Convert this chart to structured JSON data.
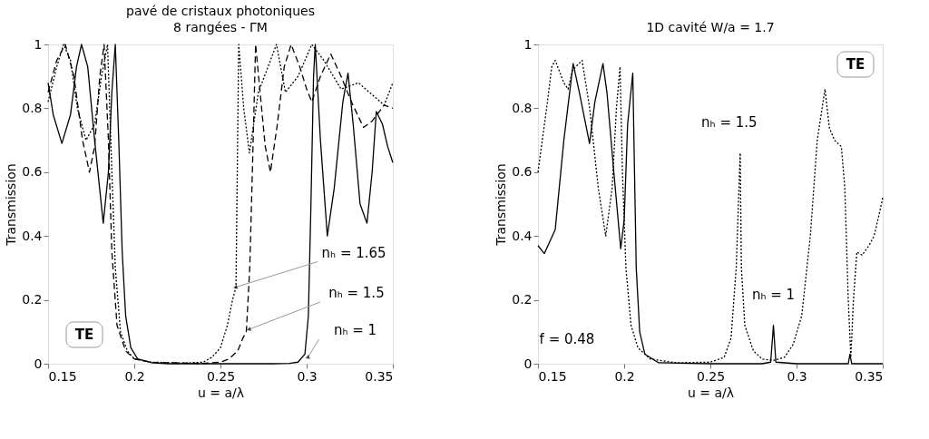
{
  "chart_data": [
    {
      "type": "line",
      "title": "pavé de cristaux photoniques",
      "subtitle": "8 rangées - ΓM",
      "xlabel": "u = a/λ",
      "ylabel": "Transmission",
      "xlim": [
        0.15,
        0.35
      ],
      "ylim": [
        0,
        1
      ],
      "xticks": [
        0.15,
        0.2,
        0.25,
        0.3,
        0.35
      ],
      "yticks": [
        0,
        0.2,
        0.4,
        0.6,
        0.8,
        1
      ],
      "grid": false,
      "series": [
        {
          "color": "#000000",
          "line_style": "solid",
          "x": [
            0.15,
            0.153,
            0.158,
            0.163,
            0.1665,
            0.1694,
            0.173,
            0.177,
            0.182,
            0.185,
            0.187,
            0.189,
            0.191,
            0.193,
            0.195,
            0.198,
            0.202,
            0.21,
            0.22,
            0.25,
            0.28,
            0.29,
            0.295,
            0.299,
            0.301,
            0.3025,
            0.304,
            0.305,
            0.308,
            0.312,
            0.316,
            0.321,
            0.324,
            0.327,
            0.331,
            0.335,
            0.338,
            0.3404,
            0.344,
            0.347,
            0.35
          ],
          "values": [
            0.88,
            0.78,
            0.69,
            0.78,
            0.93,
            1.0,
            0.93,
            0.7,
            0.44,
            0.6,
            0.85,
            1.0,
            0.7,
            0.35,
            0.15,
            0.05,
            0.015,
            0.003,
            0,
            0,
            0,
            0.001,
            0.005,
            0.03,
            0.15,
            0.5,
            0.9,
            1.0,
            0.7,
            0.4,
            0.55,
            0.82,
            0.91,
            0.75,
            0.5,
            0.44,
            0.6,
            0.79,
            0.75,
            0.68,
            0.63
          ]
        },
        {
          "color": "#000000",
          "line_style": "dashed",
          "x": [
            0.15,
            0.155,
            0.16,
            0.165,
            0.17,
            0.174,
            0.177,
            0.18,
            0.1825,
            0.185,
            0.187,
            0.19,
            0.195,
            0.2,
            0.21,
            0.24,
            0.25,
            0.255,
            0.26,
            0.263,
            0.265,
            0.267,
            0.2685,
            0.2704,
            0.273,
            0.276,
            0.279,
            0.283,
            0.287,
            0.291,
            0.296,
            0.3,
            0.303,
            0.308,
            0.314,
            0.32,
            0.326,
            0.333,
            0.338,
            0.345,
            0.35
          ],
          "values": [
            0.85,
            0.95,
            1.0,
            0.9,
            0.7,
            0.6,
            0.68,
            0.9,
            1.0,
            0.7,
            0.35,
            0.12,
            0.04,
            0.015,
            0.004,
            0.001,
            0.005,
            0.015,
            0.04,
            0.08,
            0.1,
            0.3,
            0.6,
            1.0,
            0.85,
            0.68,
            0.6,
            0.75,
            0.93,
            1.0,
            0.93,
            0.86,
            0.82,
            0.9,
            0.97,
            0.9,
            0.82,
            0.74,
            0.76,
            0.81,
            0.8
          ]
        },
        {
          "color": "#000000",
          "line_style": "dotted",
          "x": [
            0.15,
            0.155,
            0.159,
            0.163,
            0.167,
            0.172,
            0.177,
            0.181,
            0.1845,
            0.187,
            0.189,
            0.192,
            0.196,
            0.2,
            0.21,
            0.23,
            0.24,
            0.245,
            0.25,
            0.254,
            0.257,
            0.259,
            0.2606,
            0.2635,
            0.2668,
            0.272,
            0.2825,
            0.2877,
            0.295,
            0.303,
            0.31,
            0.32,
            0.33,
            0.345,
            0.35
          ],
          "values": [
            0.82,
            0.93,
            1.0,
            0.95,
            0.8,
            0.7,
            0.75,
            0.9,
            1.0,
            0.6,
            0.3,
            0.1,
            0.04,
            0.015,
            0.005,
            0.002,
            0.005,
            0.02,
            0.05,
            0.12,
            0.2,
            0.24,
            1.0,
            0.8,
            0.66,
            0.85,
            1.0,
            0.85,
            0.9,
            1.0,
            0.95,
            0.86,
            0.88,
            0.81,
            0.88
          ]
        }
      ],
      "annotations": [
        {
          "text": "nₕ = 1.65",
          "x": 0.259,
          "y": 0.24
        },
        {
          "text": "nₕ = 1.5",
          "x": 0.2668,
          "y": 0.108
        },
        {
          "text": "nₕ = 1",
          "x": 0.3008,
          "y": 0.02
        },
        "TE"
      ]
    },
    {
      "type": "line",
      "title": "1D cavité W/a = 1.7",
      "xlabel": "u = a/λ",
      "ylabel": "Transmission",
      "xlim": [
        0.15,
        0.35
      ],
      "ylim": [
        0,
        1
      ],
      "xticks": [
        0.15,
        0.2,
        0.25,
        0.3,
        0.35
      ],
      "yticks": [
        0,
        0.2,
        0.4,
        0.6,
        0.8,
        1
      ],
      "grid": false,
      "series": [
        {
          "color": "#000000",
          "line_style": "solid",
          "x": [
            0.15,
            0.1537,
            0.16,
            0.165,
            0.1704,
            0.174,
            0.1799,
            0.183,
            0.1877,
            0.19,
            0.194,
            0.198,
            0.2,
            0.202,
            0.205,
            0.206,
            0.207,
            0.209,
            0.212,
            0.22,
            0.25,
            0.28,
            0.285,
            0.2866,
            0.288,
            0.3,
            0.33,
            0.331,
            0.332,
            0.35
          ],
          "values": [
            0.37,
            0.345,
            0.42,
            0.7,
            0.94,
            0.85,
            0.69,
            0.82,
            0.94,
            0.85,
            0.6,
            0.36,
            0.45,
            0.75,
            0.91,
            0.6,
            0.3,
            0.1,
            0.03,
            0.003,
            0,
            0,
            0.005,
            0.12,
            0.005,
            0,
            0,
            0.03,
            0,
            0
          ]
        },
        {
          "color": "#000000",
          "line_style": "dotted",
          "x": [
            0.15,
            0.155,
            0.158,
            0.16,
            0.165,
            0.1675,
            0.17,
            0.1756,
            0.18,
            0.185,
            0.1893,
            0.193,
            0.1955,
            0.1976,
            0.199,
            0.201,
            0.204,
            0.208,
            0.215,
            0.23,
            0.25,
            0.258,
            0.262,
            0.265,
            0.2673,
            0.268,
            0.27,
            0.275,
            0.28,
            0.2866,
            0.293,
            0.298,
            0.303,
            0.308,
            0.312,
            0.3165,
            0.319,
            0.322,
            0.326,
            0.328,
            0.33,
            0.3315,
            0.333,
            0.335,
            0.338,
            0.342,
            0.345,
            0.348,
            0.35
          ],
          "values": [
            0.6,
            0.8,
            0.93,
            0.95,
            0.88,
            0.86,
            0.92,
            0.95,
            0.8,
            0.55,
            0.4,
            0.55,
            0.8,
            0.93,
            0.6,
            0.3,
            0.12,
            0.05,
            0.015,
            0.003,
            0.005,
            0.02,
            0.08,
            0.3,
            0.66,
            0.3,
            0.12,
            0.04,
            0.015,
            0.01,
            0.02,
            0.06,
            0.15,
            0.4,
            0.7,
            0.86,
            0.74,
            0.7,
            0.68,
            0.55,
            0.2,
            0.02,
            0.2,
            0.35,
            0.34,
            0.37,
            0.4,
            0.47,
            0.52
          ]
        }
      ],
      "annotations": [
        {
          "text": "nₕ = 1.5",
          "x": 0.2673,
          "y": 0.66
        },
        {
          "text": "nₕ = 1",
          "x": 0.2866,
          "y": 0.12
        },
        "f = 0.48",
        "TE"
      ]
    }
  ]
}
